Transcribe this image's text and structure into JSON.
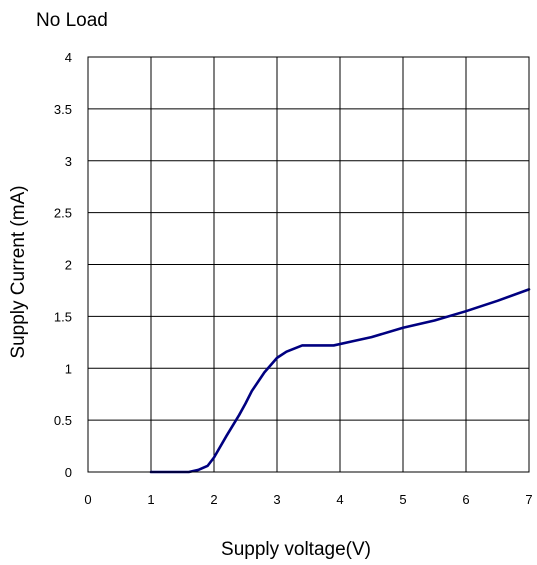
{
  "chart_data": {
    "type": "line",
    "title": "No Load",
    "xlabel": "Supply voltage(V)",
    "ylabel": "Supply Current (mA)",
    "xlim": [
      0,
      7
    ],
    "ylim": [
      0,
      4
    ],
    "x_ticks": [
      "0",
      "1",
      "2",
      "3",
      "4",
      "5",
      "6",
      "7"
    ],
    "y_ticks": [
      "0",
      "0.5",
      "1",
      "1.5",
      "2",
      "2.5",
      "3",
      "3.5",
      "4"
    ],
    "grid": true,
    "line_color": "#000080",
    "series": [
      {
        "x": [
          1.0,
          1.6,
          1.75,
          1.9,
          2.0,
          2.2,
          2.4,
          2.5,
          2.6,
          2.8,
          3.0,
          3.15,
          3.4,
          3.6,
          3.9,
          4.2,
          4.5,
          5.0,
          5.5,
          6.0,
          6.5,
          7.0
        ],
        "y": [
          0.0,
          0.0,
          0.02,
          0.06,
          0.14,
          0.35,
          0.55,
          0.66,
          0.78,
          0.96,
          1.1,
          1.16,
          1.22,
          1.22,
          1.22,
          1.26,
          1.3,
          1.39,
          1.46,
          1.55,
          1.65,
          1.76
        ]
      }
    ]
  }
}
